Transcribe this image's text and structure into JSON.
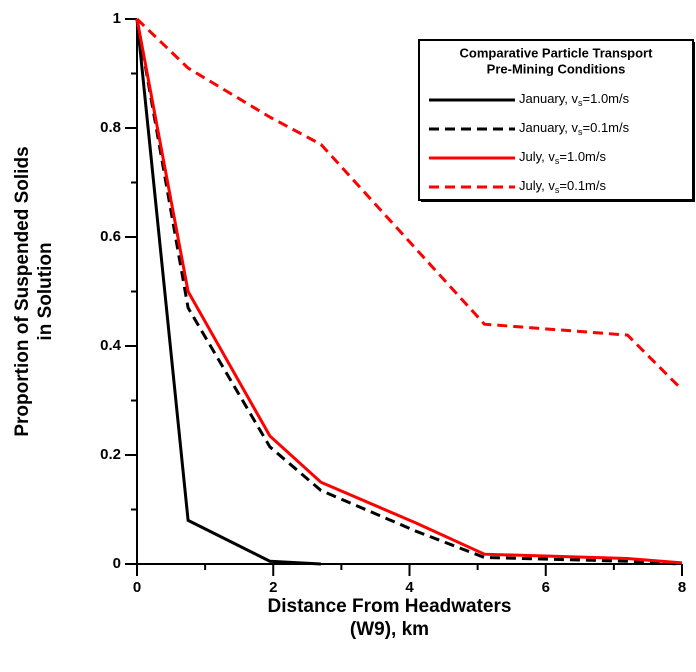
{
  "chart_data": {
    "type": "line",
    "ylabel": [
      "Proportion of Suspended Solids",
      "in Solution"
    ],
    "xlabel": [
      "Distance From Headwaters",
      "(W9), km"
    ],
    "legend_title": [
      "Comparative Particle Transport",
      "Pre-Mining Conditions"
    ],
    "legend": "upper right",
    "xlim": [
      0,
      8
    ],
    "ylim": [
      0,
      1
    ],
    "xticks": [
      0,
      2,
      4,
      6,
      8
    ],
    "yticks": [
      0,
      0.2,
      0.4,
      0.6,
      0.8,
      1
    ],
    "xminorticks": [
      1,
      3,
      5,
      7
    ],
    "yminorticks": [
      0.1,
      0.3,
      0.5,
      0.7,
      0.9
    ],
    "series": [
      {
        "name": "January, vs=1.0m/s",
        "color": "#000000",
        "dash": false,
        "x": [
          0,
          0.75,
          1.95,
          2.7
        ],
        "values": [
          1,
          0.08,
          0.005,
          0
        ]
      },
      {
        "name": "January, vs=0.1m/s",
        "color": "#000000",
        "dash": true,
        "x": [
          0,
          0.75,
          1.95,
          2.7,
          4.1,
          5.1,
          7.2,
          8
        ],
        "values": [
          1,
          0.47,
          0.215,
          0.135,
          0.06,
          0.012,
          0.005,
          0
        ]
      },
      {
        "name": "July, vs=1.0m/s",
        "color": "#ff0000",
        "dash": false,
        "x": [
          0,
          0.75,
          1.95,
          2.7,
          4.1,
          5.1,
          7.2,
          8
        ],
        "values": [
          1,
          0.5,
          0.235,
          0.15,
          0.075,
          0.018,
          0.01,
          0.002
        ]
      },
      {
        "name": "July, vs=0.1m/s",
        "color": "#ff0000",
        "dash": true,
        "x": [
          0,
          0.75,
          1.95,
          2.7,
          5.1,
          7.2,
          8
        ],
        "values": [
          1,
          0.91,
          0.82,
          0.77,
          0.44,
          0.42,
          0.32
        ]
      }
    ]
  }
}
